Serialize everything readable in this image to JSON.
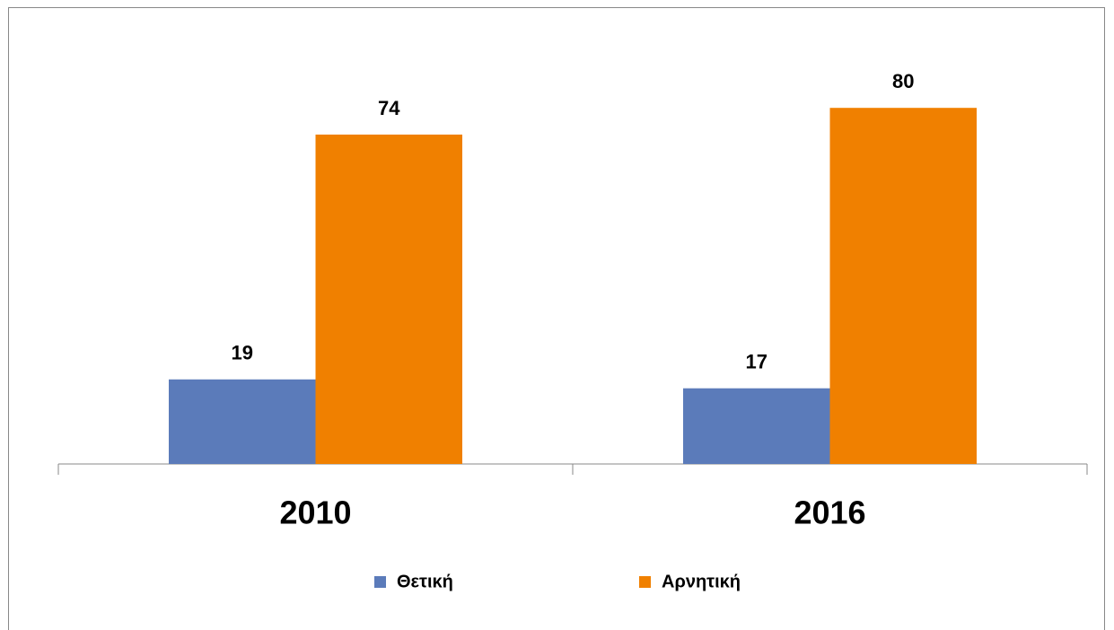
{
  "chart_data": {
    "type": "bar",
    "categories": [
      "2010",
      "2016"
    ],
    "series": [
      {
        "name": "Θετική",
        "color": "#5b7bba",
        "values": [
          19,
          17
        ]
      },
      {
        "name": "Αρνητική",
        "color": "#f08000",
        "values": [
          74,
          80
        ]
      }
    ],
    "ylim": [
      0,
      100
    ]
  }
}
